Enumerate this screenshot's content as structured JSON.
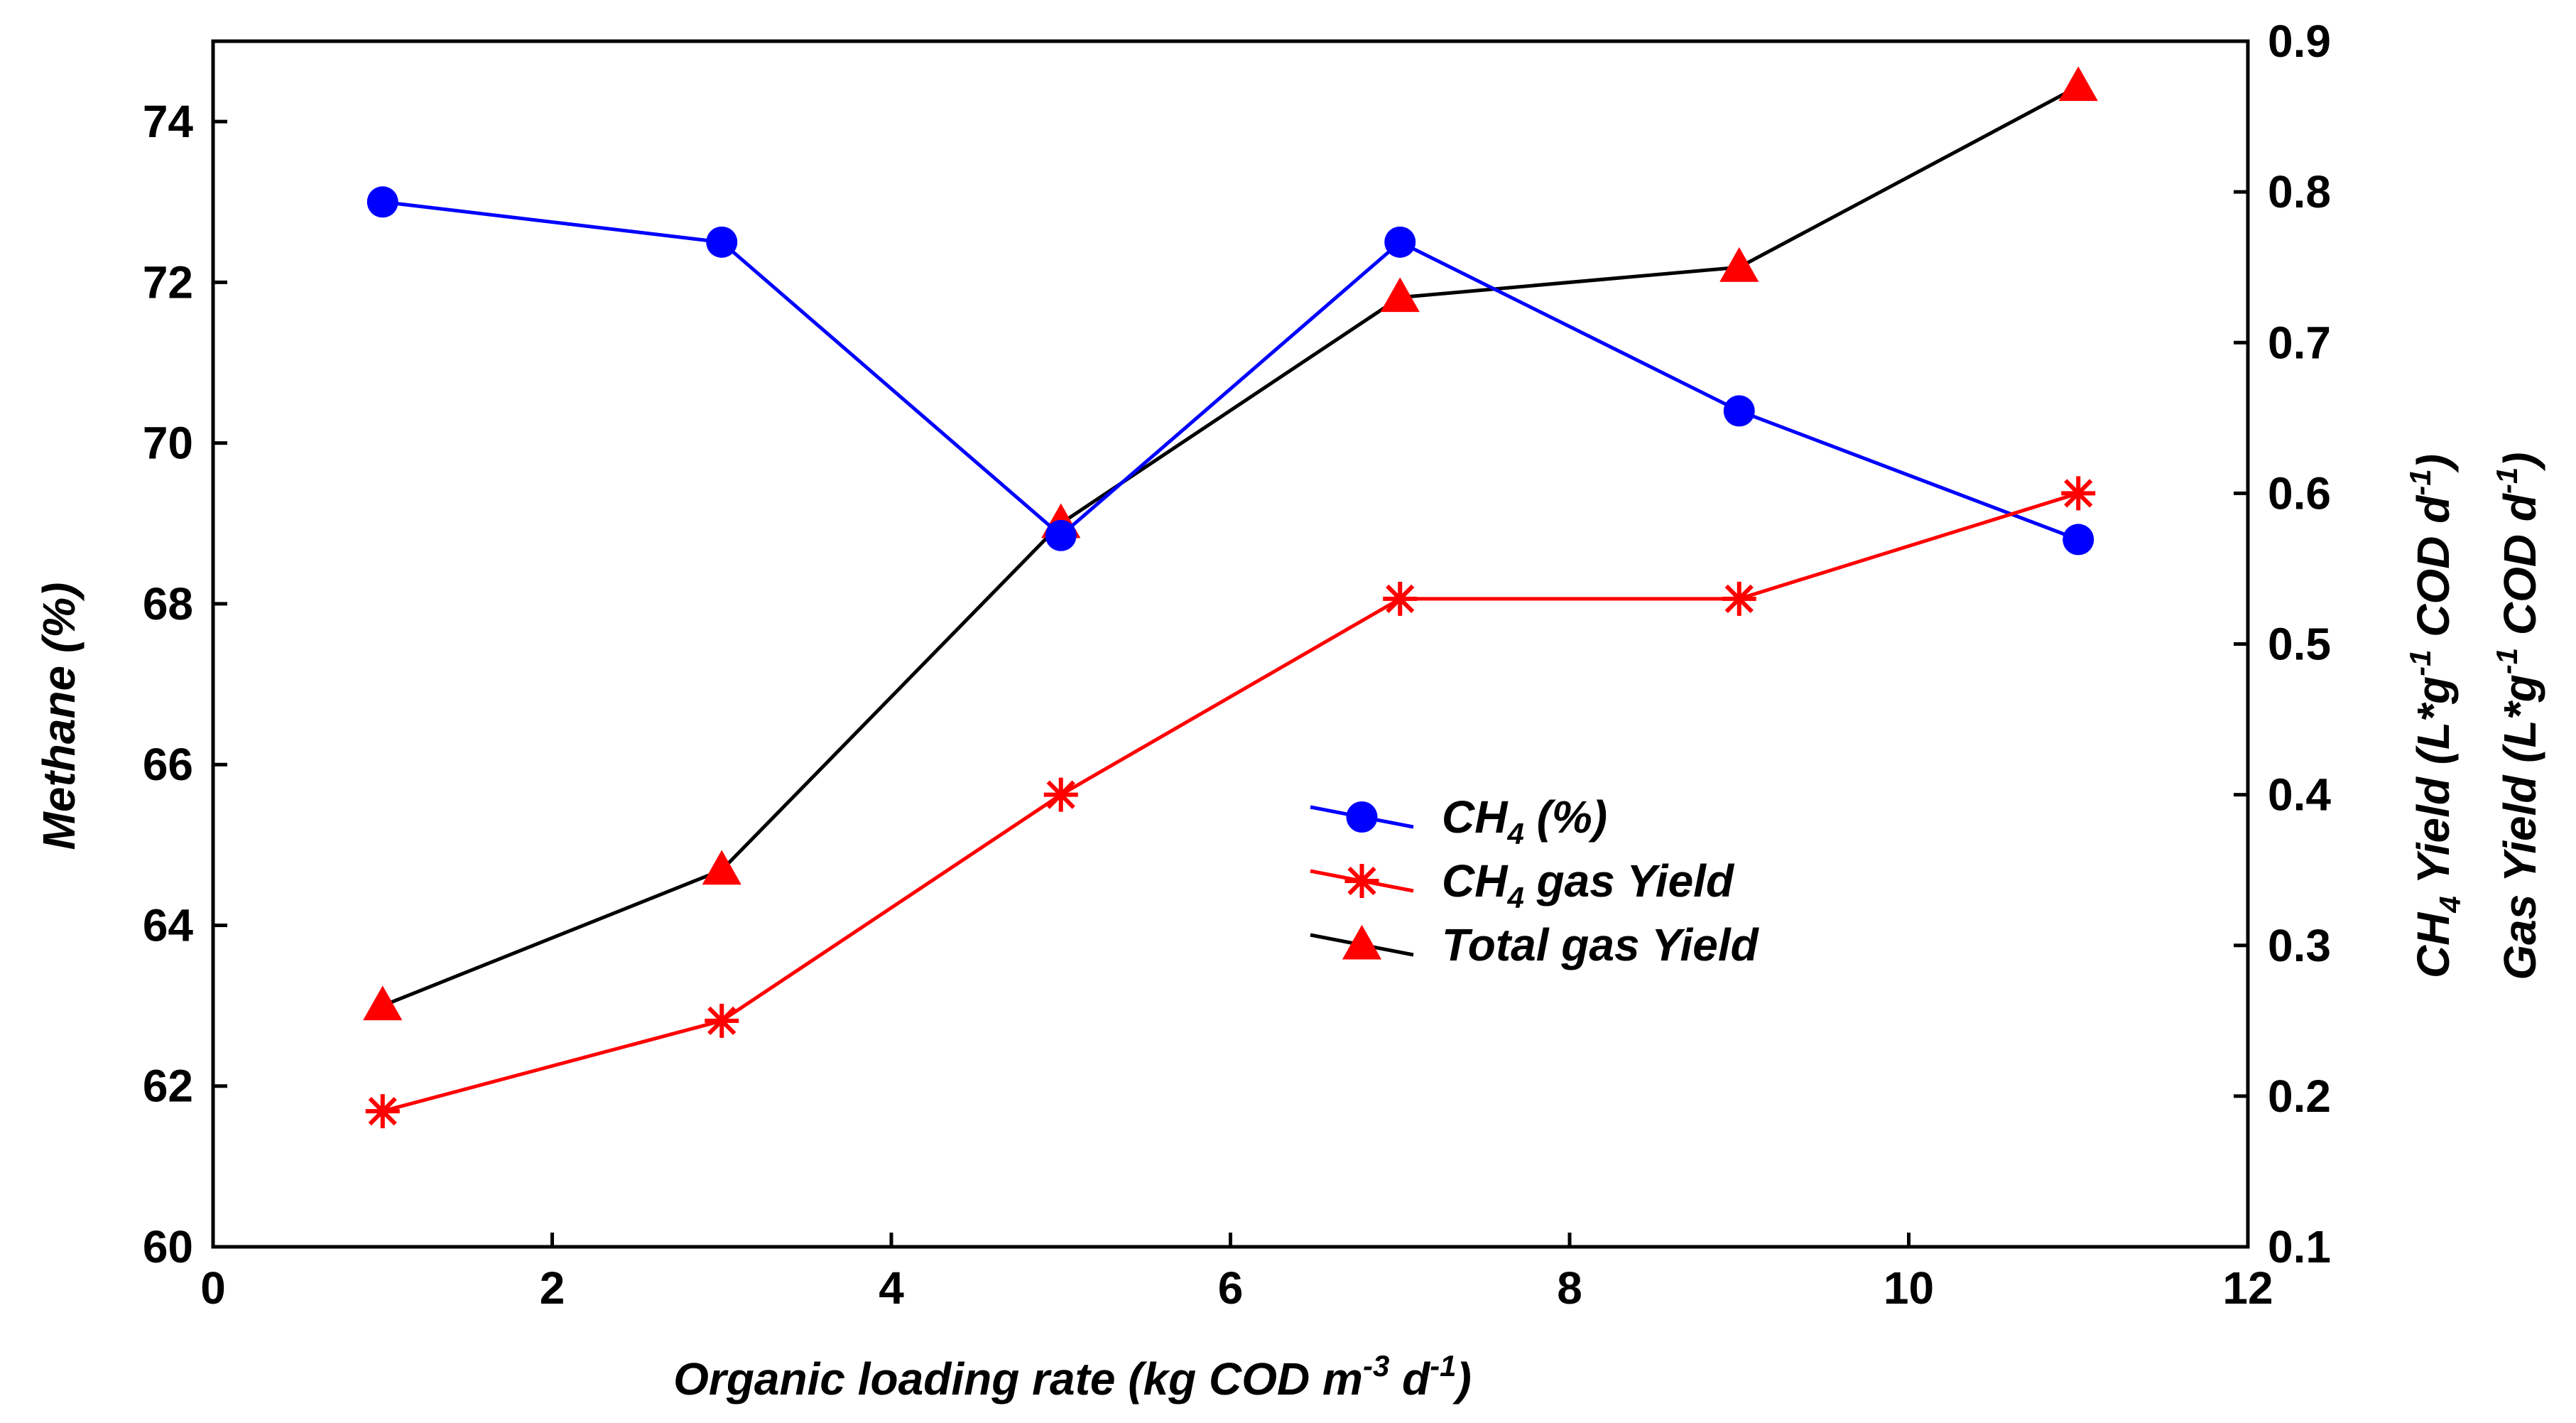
{
  "chart_data": {
    "type": "line",
    "x": [
      1,
      3,
      5,
      7,
      9,
      11
    ],
    "xlabel": {
      "main": "Organic loading rate (kg COD m",
      "sup1": "-3",
      "mid": " d",
      "sup2": "-1",
      "end": ")"
    },
    "xlim": [
      0,
      12
    ],
    "xticks": [
      0,
      2,
      4,
      6,
      8,
      10,
      12
    ],
    "ylabel_left": "Methane (%)",
    "ylim_left": [
      60,
      75
    ],
    "yticks_left": [
      60,
      62,
      64,
      66,
      68,
      70,
      72,
      74
    ],
    "ylabel_right_1": {
      "a": "CH",
      "sub": "4",
      "b": " Yield (L*g",
      "sup1": "-1",
      "c": " COD d",
      "sup2": "-1",
      "d": ")"
    },
    "ylabel_right_2": {
      "a": "Gas Yield (L*g",
      "sup1": "-1",
      "c": " COD d",
      "sup2": "-1",
      "d": ")"
    },
    "ylim_right": [
      0.1,
      0.9
    ],
    "yticks_right": [
      "0.1",
      "0.2",
      "0.3",
      "0.4",
      "0.5",
      "0.6",
      "0.7",
      "0.8",
      "0.9"
    ],
    "series": [
      {
        "name": "CH4 (%)",
        "label_main": "CH",
        "label_sub": "4",
        "label_rest": " (%)",
        "axis": "left",
        "marker": "circle",
        "color": "#0000ff",
        "values": [
          73.0,
          72.5,
          68.85,
          72.5,
          70.4,
          68.8
        ]
      },
      {
        "name": "CH4 gas Yield",
        "label_main": "CH",
        "label_sub": "4",
        "label_rest": " gas Yield",
        "axis": "right",
        "marker": "asterisk",
        "color": "#ff0000",
        "values": [
          0.19,
          0.25,
          0.4,
          0.53,
          0.53,
          0.6
        ]
      },
      {
        "name": "Total gas Yield",
        "label_main": "Total gas Yield",
        "label_sub": "",
        "label_rest": "",
        "axis": "right",
        "marker": "triangle",
        "color": "#000000",
        "marker_color": "#ff0000",
        "values": [
          0.26,
          0.35,
          0.58,
          0.73,
          0.75,
          0.87
        ]
      }
    ],
    "grid": false,
    "legend_position": "center-right"
  }
}
